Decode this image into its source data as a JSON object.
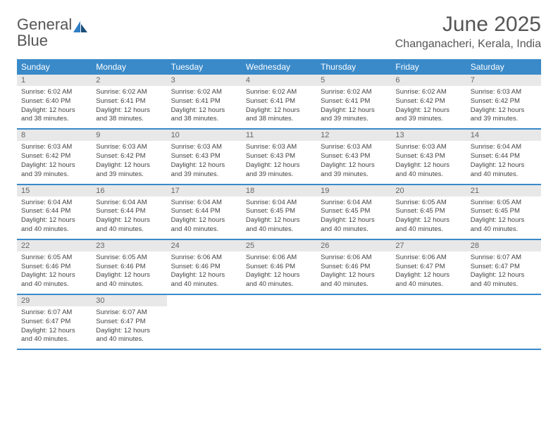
{
  "brand": {
    "part1": "General",
    "part2": "Blue"
  },
  "title": "June 2025",
  "location": "Changanacheri, Kerala, India",
  "colors": {
    "header_bg": "#3a8ac9",
    "daynum_bg": "#e8e8e8",
    "border": "#3a8ac9",
    "text": "#444444",
    "title_text": "#555555"
  },
  "weekdays": [
    "Sunday",
    "Monday",
    "Tuesday",
    "Wednesday",
    "Thursday",
    "Friday",
    "Saturday"
  ],
  "weeks": [
    [
      {
        "n": "1",
        "sr": "Sunrise: 6:02 AM",
        "ss": "Sunset: 6:40 PM",
        "dl": "Daylight: 12 hours and 38 minutes."
      },
      {
        "n": "2",
        "sr": "Sunrise: 6:02 AM",
        "ss": "Sunset: 6:41 PM",
        "dl": "Daylight: 12 hours and 38 minutes."
      },
      {
        "n": "3",
        "sr": "Sunrise: 6:02 AM",
        "ss": "Sunset: 6:41 PM",
        "dl": "Daylight: 12 hours and 38 minutes."
      },
      {
        "n": "4",
        "sr": "Sunrise: 6:02 AM",
        "ss": "Sunset: 6:41 PM",
        "dl": "Daylight: 12 hours and 38 minutes."
      },
      {
        "n": "5",
        "sr": "Sunrise: 6:02 AM",
        "ss": "Sunset: 6:41 PM",
        "dl": "Daylight: 12 hours and 39 minutes."
      },
      {
        "n": "6",
        "sr": "Sunrise: 6:02 AM",
        "ss": "Sunset: 6:42 PM",
        "dl": "Daylight: 12 hours and 39 minutes."
      },
      {
        "n": "7",
        "sr": "Sunrise: 6:03 AM",
        "ss": "Sunset: 6:42 PM",
        "dl": "Daylight: 12 hours and 39 minutes."
      }
    ],
    [
      {
        "n": "8",
        "sr": "Sunrise: 6:03 AM",
        "ss": "Sunset: 6:42 PM",
        "dl": "Daylight: 12 hours and 39 minutes."
      },
      {
        "n": "9",
        "sr": "Sunrise: 6:03 AM",
        "ss": "Sunset: 6:42 PM",
        "dl": "Daylight: 12 hours and 39 minutes."
      },
      {
        "n": "10",
        "sr": "Sunrise: 6:03 AM",
        "ss": "Sunset: 6:43 PM",
        "dl": "Daylight: 12 hours and 39 minutes."
      },
      {
        "n": "11",
        "sr": "Sunrise: 6:03 AM",
        "ss": "Sunset: 6:43 PM",
        "dl": "Daylight: 12 hours and 39 minutes."
      },
      {
        "n": "12",
        "sr": "Sunrise: 6:03 AM",
        "ss": "Sunset: 6:43 PM",
        "dl": "Daylight: 12 hours and 39 minutes."
      },
      {
        "n": "13",
        "sr": "Sunrise: 6:03 AM",
        "ss": "Sunset: 6:43 PM",
        "dl": "Daylight: 12 hours and 40 minutes."
      },
      {
        "n": "14",
        "sr": "Sunrise: 6:04 AM",
        "ss": "Sunset: 6:44 PM",
        "dl": "Daylight: 12 hours and 40 minutes."
      }
    ],
    [
      {
        "n": "15",
        "sr": "Sunrise: 6:04 AM",
        "ss": "Sunset: 6:44 PM",
        "dl": "Daylight: 12 hours and 40 minutes."
      },
      {
        "n": "16",
        "sr": "Sunrise: 6:04 AM",
        "ss": "Sunset: 6:44 PM",
        "dl": "Daylight: 12 hours and 40 minutes."
      },
      {
        "n": "17",
        "sr": "Sunrise: 6:04 AM",
        "ss": "Sunset: 6:44 PM",
        "dl": "Daylight: 12 hours and 40 minutes."
      },
      {
        "n": "18",
        "sr": "Sunrise: 6:04 AM",
        "ss": "Sunset: 6:45 PM",
        "dl": "Daylight: 12 hours and 40 minutes."
      },
      {
        "n": "19",
        "sr": "Sunrise: 6:04 AM",
        "ss": "Sunset: 6:45 PM",
        "dl": "Daylight: 12 hours and 40 minutes."
      },
      {
        "n": "20",
        "sr": "Sunrise: 6:05 AM",
        "ss": "Sunset: 6:45 PM",
        "dl": "Daylight: 12 hours and 40 minutes."
      },
      {
        "n": "21",
        "sr": "Sunrise: 6:05 AM",
        "ss": "Sunset: 6:45 PM",
        "dl": "Daylight: 12 hours and 40 minutes."
      }
    ],
    [
      {
        "n": "22",
        "sr": "Sunrise: 6:05 AM",
        "ss": "Sunset: 6:46 PM",
        "dl": "Daylight: 12 hours and 40 minutes."
      },
      {
        "n": "23",
        "sr": "Sunrise: 6:05 AM",
        "ss": "Sunset: 6:46 PM",
        "dl": "Daylight: 12 hours and 40 minutes."
      },
      {
        "n": "24",
        "sr": "Sunrise: 6:06 AM",
        "ss": "Sunset: 6:46 PM",
        "dl": "Daylight: 12 hours and 40 minutes."
      },
      {
        "n": "25",
        "sr": "Sunrise: 6:06 AM",
        "ss": "Sunset: 6:46 PM",
        "dl": "Daylight: 12 hours and 40 minutes."
      },
      {
        "n": "26",
        "sr": "Sunrise: 6:06 AM",
        "ss": "Sunset: 6:46 PM",
        "dl": "Daylight: 12 hours and 40 minutes."
      },
      {
        "n": "27",
        "sr": "Sunrise: 6:06 AM",
        "ss": "Sunset: 6:47 PM",
        "dl": "Daylight: 12 hours and 40 minutes."
      },
      {
        "n": "28",
        "sr": "Sunrise: 6:07 AM",
        "ss": "Sunset: 6:47 PM",
        "dl": "Daylight: 12 hours and 40 minutes."
      }
    ],
    [
      {
        "n": "29",
        "sr": "Sunrise: 6:07 AM",
        "ss": "Sunset: 6:47 PM",
        "dl": "Daylight: 12 hours and 40 minutes."
      },
      {
        "n": "30",
        "sr": "Sunrise: 6:07 AM",
        "ss": "Sunset: 6:47 PM",
        "dl": "Daylight: 12 hours and 40 minutes."
      },
      null,
      null,
      null,
      null,
      null
    ]
  ]
}
